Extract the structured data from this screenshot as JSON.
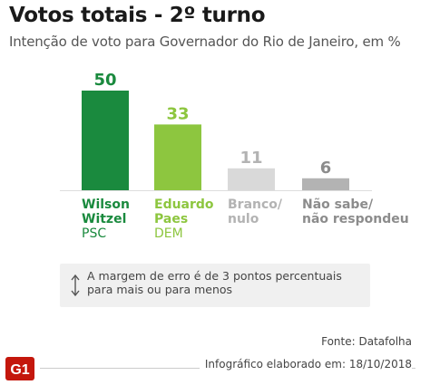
{
  "title": "Votos totais - 2º turno",
  "subtitle": "Intenção de voto para Governador do Rio de Janeiro, em %",
  "chart_data": {
    "type": "bar",
    "categories": [
      "Wilson Witzel",
      "Eduardo Paes",
      "Branco/ nulo",
      "Não sabe/ não respondeu"
    ],
    "values": [
      50,
      33,
      11,
      6
    ],
    "ylim": [
      0,
      50
    ],
    "grid": false,
    "legend": "none",
    "bars": [
      {
        "name": "Wilson\nWitzel",
        "party": "PSC",
        "value": 50,
        "color": "#1a8a3e",
        "label_color": "#1a8a3e"
      },
      {
        "name": "Eduardo\nPaes",
        "party": "DEM",
        "value": 33,
        "color": "#8dc63f",
        "label_color": "#8dc63f"
      },
      {
        "name": "Branco/\nnulo",
        "party": "",
        "value": 11,
        "color": "#d9d9d9",
        "label_color": "#b3b3b3"
      },
      {
        "name": "Não sabe/\nnão respondeu",
        "party": "",
        "value": 6,
        "color": "#b3b3b3",
        "label_color": "#8c8c8c"
      }
    ]
  },
  "note": {
    "icon": "arrow-up-down-icon",
    "text": "A margem de erro é de 3 pontos percentuais para mais ou para menos"
  },
  "source": "Fonte: Datafolha",
  "credit": "Infográfico elaborado em: 18/10/2018",
  "logo": {
    "text": "G1",
    "color": "#c4170c"
  }
}
